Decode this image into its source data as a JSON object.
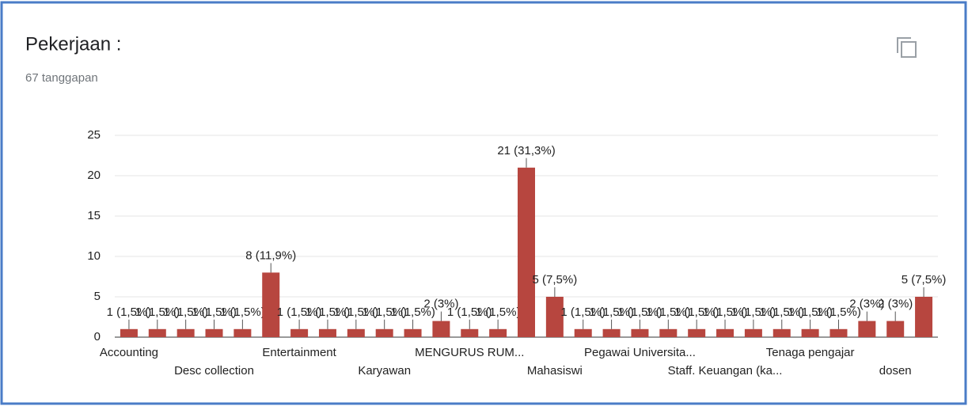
{
  "chart_data": {
    "type": "bar",
    "title": "Pekerjaan :",
    "subtitle": "67 tanggapan",
    "categories": [
      "Accounting",
      null,
      null,
      "Desc collection",
      null,
      null,
      "Entertainment",
      null,
      null,
      "Karyawan",
      null,
      null,
      "MENGURUS RUM...",
      null,
      null,
      "Mahasiswi",
      null,
      null,
      "Pegawai Universita...",
      null,
      null,
      "Staff. Keuangan (ka...",
      null,
      null,
      "Tenaga pengajar",
      null,
      null,
      "dosen",
      null
    ],
    "values": [
      1,
      1,
      1,
      1,
      1,
      8,
      1,
      1,
      1,
      1,
      1,
      2,
      1,
      1,
      21,
      5,
      1,
      1,
      1,
      1,
      1,
      1,
      1,
      1,
      1,
      1,
      2,
      2,
      5
    ],
    "value_labels": [
      "1 (1,5%)",
      "1 (1,5%)",
      "1 (1,5%)",
      "1 (1,5%)",
      "1 (1,5%)",
      "8 (11,9%)",
      "1 (1,5%)",
      "1 (1,5%)",
      "1 (1,5%)",
      "1 (1,5%)",
      "1 (1,5%)",
      "2 (3%)",
      "1 (1,5%)",
      "1 (1,5%)",
      "21 (31,3%)",
      "5 (7,5%)",
      "1 (1,5%)",
      "1 (1,5%)",
      "1 (1,5%)",
      "1 (1,5%)",
      "1 (1,5%)",
      "1 (1,5%)",
      "1 (1,5%)",
      "1 (1,5%)",
      "1 (1,5%)",
      "1 (1,5%)",
      "2 (3%)",
      "2 (3%)",
      "5 (7,5%)"
    ],
    "color": "#b7463f",
    "ylim": [
      0,
      25
    ],
    "yticks": [
      0,
      5,
      10,
      15,
      20,
      25
    ],
    "grid": true
  }
}
